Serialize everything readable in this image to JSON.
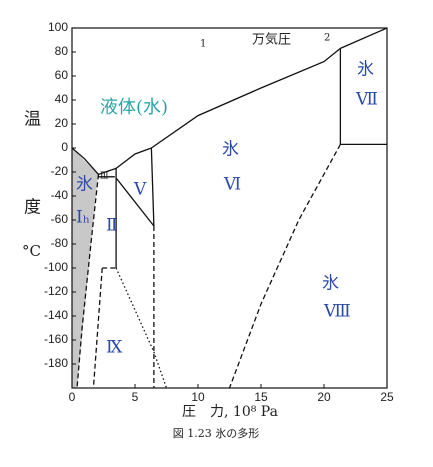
{
  "chart_data": {
    "type": "line",
    "caption": "図 1.23 氷の多形",
    "x_label": "圧　力, 10⁸ Pa",
    "y_label": [
      "温",
      "度",
      "°C"
    ],
    "top_axis_label": "万気圧",
    "top_axis_marks": [
      "1",
      "2"
    ],
    "region_labels": [
      "液体(水)",
      "氷",
      "Ⅶ",
      "氷",
      "Ⅵ",
      "Ⅴ",
      "氷",
      "Iₕ",
      "Ⅱ",
      "Ⅸ",
      "氷",
      "Ⅷ",
      "Ⅲ"
    ],
    "xlim": [
      0,
      25
    ],
    "ylim": [
      -200,
      100
    ],
    "xticks": [
      0,
      5,
      10,
      15,
      20,
      25
    ],
    "yticks": [
      100,
      80,
      60,
      40,
      20,
      0,
      -20,
      -40,
      -60,
      -80,
      -100,
      -120,
      -140,
      -160,
      -180
    ],
    "color": "#111",
    "series": [
      {
        "x": [
          0,
          1,
          2.1
        ],
        "values": [
          0,
          -9,
          -22
        ],
        "dash": "solid"
      },
      {
        "x": [
          2.1,
          3.5
        ],
        "values": [
          -22,
          -17
        ],
        "dash": "solid"
      },
      {
        "x": [
          3.5,
          5,
          6.3
        ],
        "values": [
          -17,
          -5,
          0
        ],
        "dash": "solid"
      },
      {
        "x": [
          6.3,
          10,
          15,
          20,
          21.3
        ],
        "values": [
          0,
          27,
          50,
          72,
          83
        ],
        "dash": "solid"
      },
      {
        "x": [
          21.3,
          25
        ],
        "values": [
          83,
          100
        ],
        "dash": "solid"
      },
      {
        "x": [
          21.3,
          21.3
        ],
        "values": [
          83,
          3
        ],
        "dash": "solid"
      },
      {
        "x": [
          21.3,
          25
        ],
        "values": [
          3,
          3
        ],
        "dash": "solid"
      },
      {
        "x": [
          21.3,
          18,
          15,
          12.5
        ],
        "values": [
          3,
          -60,
          -130,
          -200
        ],
        "dash": "dashed"
      },
      {
        "x": [
          2.1,
          1.5,
          0.8,
          0.4
        ],
        "values": [
          -22,
          -80,
          -150,
          -200
        ],
        "dash": "dashed"
      },
      {
        "x": [
          2.1,
          3.4
        ],
        "values": [
          -24,
          -24
        ],
        "dash": "solid"
      },
      {
        "x": [
          3.5,
          3.5
        ],
        "values": [
          -17,
          -100
        ],
        "dash": "solid"
      },
      {
        "x": [
          2.4,
          3.5
        ],
        "values": [
          -100,
          -100
        ],
        "dash": "dashed"
      },
      {
        "x": [
          2.4,
          1.7
        ],
        "values": [
          -100,
          -200
        ],
        "dash": "dashed"
      },
      {
        "x": [
          3.5,
          6.5
        ],
        "values": [
          -25,
          -65
        ],
        "dash": "solid"
      },
      {
        "x": [
          6.3,
          6.5
        ],
        "values": [
          0,
          -65
        ],
        "dash": "solid"
      },
      {
        "x": [
          6.5,
          6.5
        ],
        "values": [
          -65,
          -200
        ],
        "dash": "dashed"
      },
      {
        "x": [
          3.5,
          6.5,
          7.5
        ],
        "values": [
          -100,
          -170,
          -200
        ],
        "dash": "dotted"
      }
    ]
  }
}
